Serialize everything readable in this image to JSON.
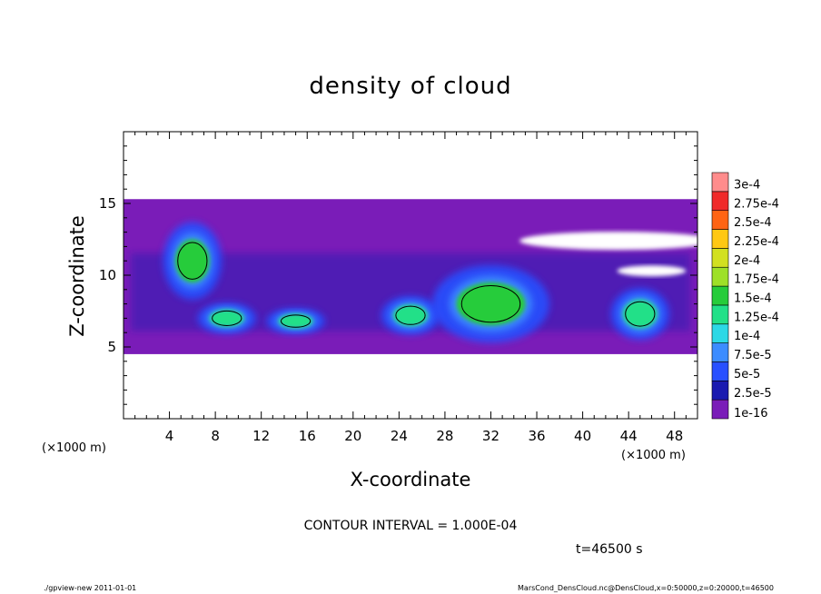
{
  "chart_data": {
    "type": "heatmap",
    "title": "density of cloud",
    "xlabel": "X-coordinate",
    "ylabel": "Z-coordinate",
    "x_unit": "(×1000 m)",
    "y_unit": "(×1000 m)",
    "xlim": [
      0,
      50
    ],
    "ylim": [
      0,
      20
    ],
    "x_ticks": [
      4,
      8,
      12,
      16,
      20,
      24,
      28,
      32,
      36,
      40,
      44,
      48
    ],
    "y_ticks": [
      5,
      10,
      15
    ],
    "colorbar_labels": [
      "1e-16",
      "2.5e-5",
      "5e-5",
      "7.5e-5",
      "1e-4",
      "1.25e-4",
      "1.5e-4",
      "1.75e-4",
      "2e-4",
      "2.25e-4",
      "2.5e-4",
      "2.75e-4",
      "3e-4"
    ],
    "colorbar_colors": [
      "#7a1cb8",
      "#1a1ab0",
      "#2850ff",
      "#3c8cff",
      "#2cd8e6",
      "#22e088",
      "#26cc3a",
      "#9ee028",
      "#d2e020",
      "#ffc814",
      "#ff6414",
      "#f02a2a",
      "#ff8c8c"
    ],
    "contour_interval": "CONTOUR INTERVAL = 1.000E-04",
    "time_label": "t=46500 s",
    "cloud_regions": [
      {
        "kind": "layer",
        "x_range": [
          0,
          50
        ],
        "z_range": [
          4.5,
          15.3
        ],
        "level": "1e-16"
      },
      {
        "kind": "blob",
        "center": [
          6,
          11
        ],
        "size": [
          3,
          3
        ],
        "level": "1.5e-4"
      },
      {
        "kind": "blob",
        "center": [
          9,
          7
        ],
        "size": [
          3,
          1.2
        ],
        "level": "1.25e-4"
      },
      {
        "kind": "blob",
        "center": [
          15,
          6.8
        ],
        "size": [
          3,
          1
        ],
        "level": "1.25e-4"
      },
      {
        "kind": "blob",
        "center": [
          25,
          7.2
        ],
        "size": [
          3,
          1.5
        ],
        "level": "1.25e-4"
      },
      {
        "kind": "blob",
        "center": [
          32,
          8
        ],
        "size": [
          6,
          3
        ],
        "level": "1.5e-4"
      },
      {
        "kind": "blob",
        "center": [
          45,
          7.3
        ],
        "size": [
          3,
          2
        ],
        "level": "1.25e-4"
      }
    ]
  },
  "footer": {
    "left": "./gpview-new  2011-01-01",
    "right": "MarsCond_DensCloud.nc@DensCloud,x=0:50000,z=0:20000,t=46500"
  },
  "colors": {
    "background": "#ffffff",
    "frame": "#000000"
  }
}
